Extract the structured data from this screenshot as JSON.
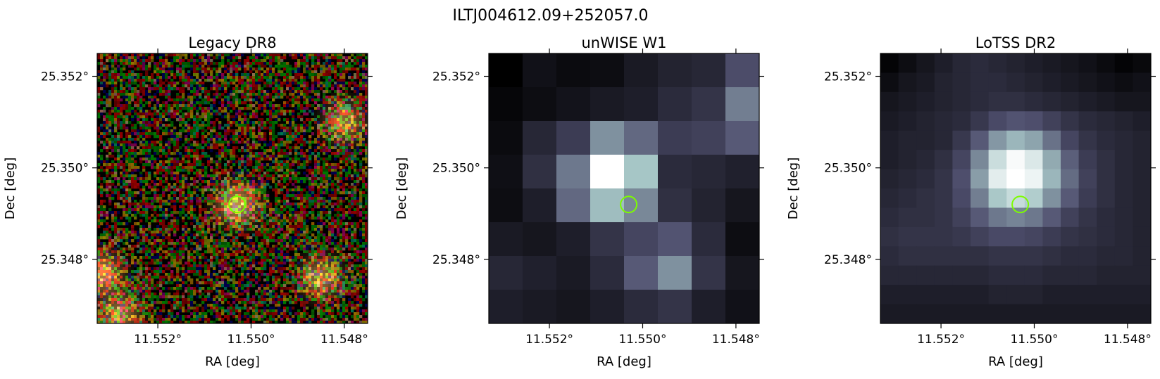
{
  "figure": {
    "title": "ILTJ004612.09+252057.0"
  },
  "chart_data": [
    {
      "type": "heatmap",
      "title": "Legacy DR8",
      "xlabel": "RA [deg]",
      "ylabel": "Dec [deg]",
      "x_ticks": [
        11.552,
        11.55,
        11.548
      ],
      "x_tick_labels": [
        "11.552°",
        "11.550°",
        "11.548°"
      ],
      "y_ticks": [
        25.352,
        25.35,
        25.348
      ],
      "y_tick_labels": [
        "25.352°",
        "25.350°",
        "25.348°"
      ],
      "xlim": [
        11.5533,
        11.5475
      ],
      "ylim": [
        25.3466,
        25.3525
      ],
      "colormap": "rgb-composite",
      "grid": false,
      "marker": {
        "ra": 11.5503,
        "dec": 25.3492,
        "shape": "circle",
        "color": "#7cfc00"
      },
      "sources": [
        {
          "ra": 11.5503,
          "dec": 25.3492,
          "brightness": 1.0
        },
        {
          "ra": 11.548,
          "dec": 25.351,
          "brightness": 0.75
        },
        {
          "ra": 11.5485,
          "dec": 25.3476,
          "brightness": 0.8
        },
        {
          "ra": 11.5532,
          "dec": 25.3477,
          "brightness": 0.9
        },
        {
          "ra": 11.5528,
          "dec": 25.3468,
          "brightness": 0.75
        }
      ]
    },
    {
      "type": "heatmap",
      "title": "unWISE W1",
      "xlabel": "RA [deg]",
      "ylabel": "Dec [deg]",
      "x_ticks": [
        11.552,
        11.55,
        11.548
      ],
      "x_tick_labels": [
        "11.552°",
        "11.550°",
        "11.548°"
      ],
      "y_ticks": [
        25.352,
        25.35,
        25.348
      ],
      "y_tick_labels": [
        "25.352°",
        "25.350°",
        "25.348°"
      ],
      "xlim": [
        11.5533,
        11.5475
      ],
      "ylim": [
        25.3466,
        25.3525
      ],
      "colormap": "bone",
      "grid": false,
      "marker": {
        "ra": 11.5503,
        "dec": 25.3492,
        "shape": "circle",
        "color": "#7cfc00"
      },
      "values": [
        [
          0.0,
          0.08,
          0.05,
          0.06,
          0.12,
          0.16,
          0.18,
          0.35
        ],
        [
          0.03,
          0.06,
          0.09,
          0.12,
          0.14,
          0.2,
          0.24,
          0.52
        ],
        [
          0.05,
          0.18,
          0.28,
          0.58,
          0.45,
          0.28,
          0.3,
          0.4
        ],
        [
          0.07,
          0.22,
          0.5,
          1.0,
          0.75,
          0.2,
          0.18,
          0.15
        ],
        [
          0.06,
          0.14,
          0.45,
          0.72,
          0.55,
          0.22,
          0.16,
          0.1
        ],
        [
          0.12,
          0.1,
          0.14,
          0.24,
          0.32,
          0.38,
          0.2,
          0.06
        ],
        [
          0.18,
          0.15,
          0.12,
          0.2,
          0.4,
          0.58,
          0.24,
          0.1
        ],
        [
          0.14,
          0.12,
          0.1,
          0.14,
          0.2,
          0.24,
          0.14,
          0.08
        ]
      ]
    },
    {
      "type": "heatmap",
      "title": "LoTSS DR2",
      "xlabel": "RA [deg]",
      "ylabel": "Dec [deg]",
      "x_ticks": [
        11.552,
        11.55,
        11.548
      ],
      "x_tick_labels": [
        "11.552°",
        "11.550°",
        "11.548°"
      ],
      "y_ticks": [
        25.352,
        25.35,
        25.348
      ],
      "y_tick_labels": [
        "25.352°",
        "25.350°",
        "25.348°"
      ],
      "xlim": [
        11.5533,
        11.5475
      ],
      "ylim": [
        25.3466,
        25.3525
      ],
      "colormap": "bone",
      "grid": false,
      "marker": {
        "ra": 11.5503,
        "dec": 25.3492,
        "shape": "circle",
        "color": "#7cfc00"
      },
      "values": [
        [
          0.02,
          0.06,
          0.1,
          0.14,
          0.18,
          0.2,
          0.18,
          0.16,
          0.14,
          0.12,
          0.1,
          0.08,
          0.05,
          0.02,
          0.04
        ],
        [
          0.06,
          0.1,
          0.12,
          0.16,
          0.18,
          0.2,
          0.2,
          0.18,
          0.16,
          0.14,
          0.12,
          0.1,
          0.08,
          0.06,
          0.08
        ],
        [
          0.1,
          0.12,
          0.14,
          0.16,
          0.18,
          0.2,
          0.22,
          0.22,
          0.2,
          0.18,
          0.16,
          0.14,
          0.12,
          0.1,
          0.1
        ],
        [
          0.12,
          0.14,
          0.16,
          0.18,
          0.2,
          0.26,
          0.34,
          0.38,
          0.36,
          0.3,
          0.24,
          0.2,
          0.18,
          0.16,
          0.14
        ],
        [
          0.14,
          0.16,
          0.16,
          0.18,
          0.26,
          0.4,
          0.6,
          0.7,
          0.64,
          0.48,
          0.32,
          0.24,
          0.2,
          0.18,
          0.16
        ],
        [
          0.14,
          0.16,
          0.18,
          0.22,
          0.32,
          0.55,
          0.85,
          0.98,
          0.9,
          0.66,
          0.42,
          0.28,
          0.22,
          0.18,
          0.16
        ],
        [
          0.16,
          0.18,
          0.2,
          0.24,
          0.36,
          0.62,
          0.92,
          1.0,
          0.95,
          0.7,
          0.46,
          0.3,
          0.22,
          0.18,
          0.16
        ],
        [
          0.18,
          0.2,
          0.22,
          0.24,
          0.34,
          0.52,
          0.76,
          0.84,
          0.78,
          0.58,
          0.4,
          0.28,
          0.22,
          0.18,
          0.16
        ],
        [
          0.2,
          0.22,
          0.22,
          0.24,
          0.3,
          0.4,
          0.5,
          0.54,
          0.5,
          0.4,
          0.3,
          0.24,
          0.2,
          0.18,
          0.16
        ],
        [
          0.22,
          0.24,
          0.24,
          0.24,
          0.26,
          0.3,
          0.34,
          0.34,
          0.32,
          0.28,
          0.24,
          0.22,
          0.2,
          0.18,
          0.16
        ],
        [
          0.2,
          0.22,
          0.22,
          0.22,
          0.22,
          0.22,
          0.24,
          0.24,
          0.24,
          0.22,
          0.2,
          0.2,
          0.18,
          0.18,
          0.16
        ],
        [
          0.18,
          0.18,
          0.18,
          0.18,
          0.18,
          0.18,
          0.2,
          0.2,
          0.2,
          0.18,
          0.18,
          0.18,
          0.16,
          0.16,
          0.16
        ],
        [
          0.14,
          0.14,
          0.14,
          0.14,
          0.14,
          0.14,
          0.16,
          0.16,
          0.16,
          0.14,
          0.14,
          0.14,
          0.14,
          0.14,
          0.14
        ],
        [
          0.12,
          0.12,
          0.12,
          0.12,
          0.12,
          0.12,
          0.12,
          0.12,
          0.12,
          0.12,
          0.12,
          0.12,
          0.12,
          0.12,
          0.12
        ]
      ]
    }
  ]
}
